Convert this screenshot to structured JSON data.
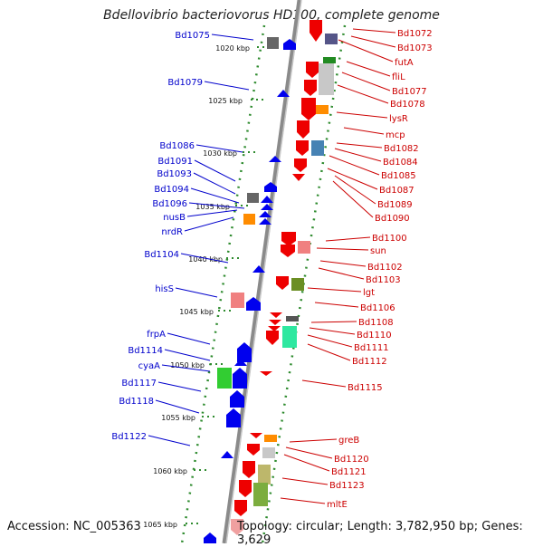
{
  "title": "Bdellovibrio bacteriovorus HD100, complete genome",
  "footer": {
    "accession": "Accession: NC_005363",
    "summary": "Topology: circular; Length: 3,782,950 bp; Genes: 3,629"
  },
  "colors": {
    "forward_label": "#0000cc",
    "reverse_label": "#cc0000",
    "backbone": "#808080",
    "scale_ring": "#228b22"
  },
  "scale_ticks": [
    "1020 kbp",
    "1025 kbp",
    "1030 kbp",
    "1035 kbp",
    "1040 kbp",
    "1045 kbp",
    "1050 kbp",
    "1055 kbp",
    "1060 kbp",
    "1065 kbp"
  ],
  "left_labels": [
    "Bd1075",
    "Bd1079",
    "Bd1086",
    "Bd1091",
    "Bd1093",
    "Bd1094",
    "Bd1096",
    "nusB",
    "nrdR",
    "Bd1104",
    "hisS",
    "frpA",
    "Bd1114",
    "cyaA",
    "Bd1117",
    "Bd1118",
    "Bd1122"
  ],
  "right_labels": [
    "Bd1072",
    "Bd1073",
    "futA",
    "fliL",
    "Bd1077",
    "Bd1078",
    "lysR",
    "mcp",
    "Bd1082",
    "Bd1084",
    "Bd1085",
    "Bd1087",
    "Bd1089",
    "Bd1090",
    "Bd1100",
    "sun",
    "Bd1102",
    "Bd1103",
    "lgt",
    "Bd1106",
    "Bd1108",
    "Bd1110",
    "Bd1111",
    "Bd1112",
    "Bd1115",
    "greB",
    "Bd1120",
    "Bd1121",
    "Bd1123",
    "mltE"
  ]
}
